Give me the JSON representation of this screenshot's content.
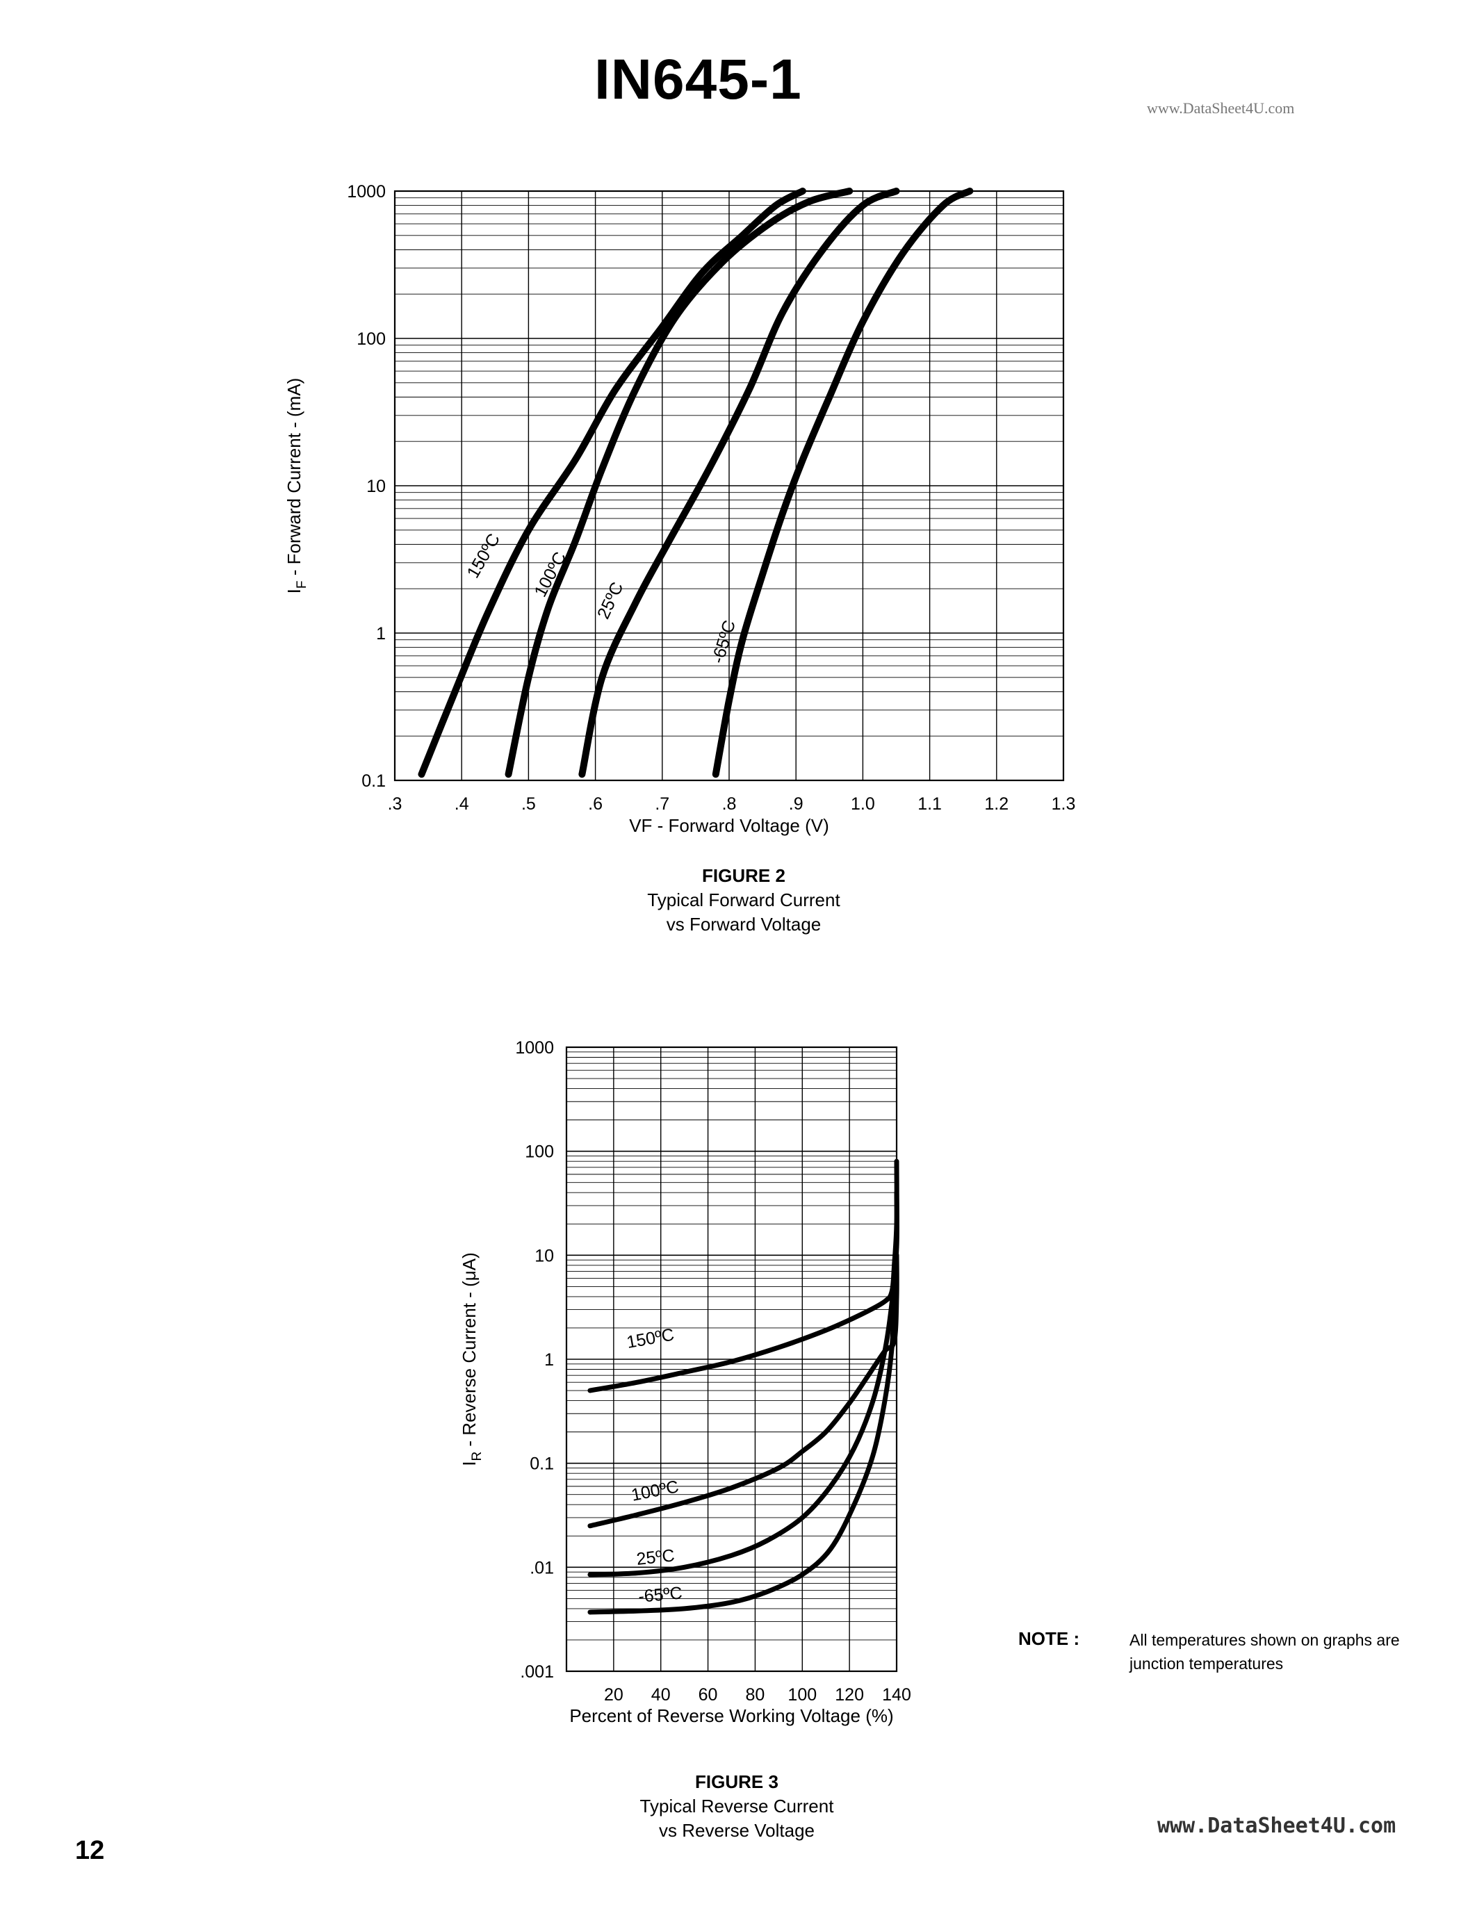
{
  "header": {
    "title": "IN645-1",
    "watermark_top": "www.DataSheet4U.com"
  },
  "footer": {
    "page_number": "12",
    "watermark_bottom": "www.DataSheet4U.com"
  },
  "note": {
    "label": "NOTE :",
    "text": "All temperatures shown on graphs are junction temperatures"
  },
  "chart_data": [
    {
      "type": "line",
      "figure_label": "FIGURE 2",
      "caption_line1": "Typical Forward Current",
      "caption_line2": "vs Forward Voltage",
      "xlabel": "VF - Forward Voltage (V)",
      "ylabel": "I_F - Forward Current - (mA)",
      "ylabel_main": "I",
      "ylabel_sub": "F",
      "ylabel_rest": " - Forward Current - (mA)",
      "x_scale": "linear",
      "y_scale": "log",
      "xlim": [
        0.3,
        1.3
      ],
      "ylim": [
        0.1,
        1000
      ],
      "x_tick_labels": [
        ".3",
        ".4",
        ".5",
        ".6",
        ".7",
        ".8",
        ".9",
        "1.0",
        "1.1",
        "1.2",
        "1.3"
      ],
      "x_ticks": [
        0.3,
        0.4,
        0.5,
        0.6,
        0.7,
        0.8,
        0.9,
        1.0,
        1.1,
        1.2,
        1.3
      ],
      "y_tick_labels": [
        "0.1",
        "1",
        "10",
        "100",
        "1000"
      ],
      "y_ticks": [
        0.1,
        1,
        10,
        100,
        1000
      ],
      "grid": true,
      "series": [
        {
          "name": "150ºC",
          "x": [
            0.34,
            0.39,
            0.44,
            0.5,
            0.57,
            0.63,
            0.7,
            0.76,
            0.82,
            0.87,
            0.91
          ],
          "y": [
            0.11,
            0.4,
            1.4,
            5,
            15,
            45,
            120,
            280,
            500,
            800,
            1000
          ]
        },
        {
          "name": "100ºC",
          "x": [
            0.47,
            0.5,
            0.53,
            0.57,
            0.61,
            0.66,
            0.72,
            0.79,
            0.86,
            0.92,
            0.98
          ],
          "y": [
            0.11,
            0.5,
            1.5,
            4.2,
            13,
            45,
            140,
            330,
            600,
            850,
            1000
          ]
        },
        {
          "name": "25ºC",
          "x": [
            0.58,
            0.61,
            0.66,
            0.71,
            0.77,
            0.83,
            0.88,
            0.94,
            1.0,
            1.05
          ],
          "y": [
            0.11,
            0.5,
            1.6,
            4.2,
            13,
            45,
            150,
            400,
            800,
            1000
          ]
        },
        {
          "name": "-65ºC",
          "x": [
            0.78,
            0.8,
            0.82,
            0.85,
            0.88,
            0.91,
            0.95,
            1.0,
            1.06,
            1.12,
            1.16
          ],
          "y": [
            0.11,
            0.35,
            0.9,
            2.5,
            6.5,
            15,
            40,
            130,
            380,
            800,
            1000
          ]
        }
      ]
    },
    {
      "type": "line",
      "figure_label": "FIGURE 3",
      "caption_line1": "Typical Reverse Current",
      "caption_line2": "vs Reverse Voltage",
      "xlabel": "Percent of Reverse Working Voltage (%)",
      "ylabel": "I_R - Reverse Current - (μA)",
      "ylabel_main": "I",
      "ylabel_sub": "R",
      "ylabel_rest": " - Reverse Current - (μA)",
      "x_scale": "linear",
      "y_scale": "log",
      "xlim": [
        0,
        140
      ],
      "ylim": [
        0.001,
        1000
      ],
      "x_tick_labels": [
        "20",
        "40",
        "60",
        "80",
        "100",
        "120",
        "140"
      ],
      "x_ticks": [
        20,
        40,
        60,
        80,
        100,
        120,
        140
      ],
      "y_tick_labels": [
        ".001",
        ".01",
        "0.1",
        "1",
        "10",
        "100",
        "1000"
      ],
      "y_ticks": [
        0.001,
        0.01,
        0.1,
        1,
        10,
        100,
        1000
      ],
      "grid": true,
      "series": [
        {
          "name": "150ºC",
          "x": [
            10,
            30,
            50,
            70,
            90,
            110,
            125,
            135,
            138,
            139,
            140,
            140
          ],
          "y": [
            0.5,
            0.6,
            0.75,
            0.95,
            1.3,
            1.9,
            2.7,
            3.6,
            4.5,
            8,
            20,
            80
          ]
        },
        {
          "name": "100ºC",
          "x": [
            10,
            30,
            50,
            70,
            90,
            100,
            110,
            120,
            128,
            135,
            139,
            140,
            140
          ],
          "y": [
            0.025,
            0.032,
            0.042,
            0.058,
            0.09,
            0.13,
            0.2,
            0.38,
            0.7,
            1.2,
            1.5,
            4,
            10
          ]
        },
        {
          "name": "25ºC",
          "x": [
            10,
            30,
            50,
            70,
            85,
            100,
            112,
            122,
            130,
            135,
            138,
            140,
            140
          ],
          "y": [
            0.0085,
            0.0088,
            0.01,
            0.013,
            0.018,
            0.03,
            0.06,
            0.14,
            0.4,
            1.2,
            3.5,
            12,
            40
          ]
        },
        {
          "name": "-65ºC",
          "x": [
            10,
            30,
            50,
            70,
            85,
            100,
            112,
            122,
            130,
            135,
            138,
            139,
            140
          ],
          "y": [
            0.0037,
            0.0038,
            0.004,
            0.0046,
            0.0058,
            0.0085,
            0.015,
            0.04,
            0.12,
            0.4,
            1.3,
            4,
            10
          ]
        }
      ]
    }
  ]
}
